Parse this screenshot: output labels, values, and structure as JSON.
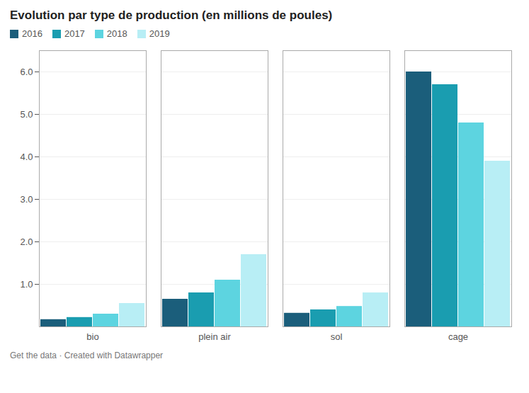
{
  "chart_data": {
    "type": "bar",
    "title": "Evolution par type de production (en millions de poules)",
    "caption": "Get the data · Created with Datawrapper",
    "categories": [
      "bio",
      "plein air",
      "sol",
      "cage"
    ],
    "series": [
      {
        "name": "2016",
        "color": "#1b5e7b",
        "values": [
          0.17,
          0.65,
          0.32,
          6.0
        ]
      },
      {
        "name": "2017",
        "color": "#1a9db0",
        "values": [
          0.22,
          0.8,
          0.4,
          5.7
        ]
      },
      {
        "name": "2018",
        "color": "#5dd4e0",
        "values": [
          0.3,
          1.1,
          0.48,
          4.8
        ]
      },
      {
        "name": "2019",
        "color": "#b8eef5",
        "values": [
          0.55,
          1.7,
          0.8,
          3.9
        ]
      }
    ],
    "ylim": [
      0,
      6.5
    ],
    "yticks": [
      1,
      2,
      3,
      4,
      5,
      6
    ],
    "grid": true,
    "legend": "upper left"
  }
}
